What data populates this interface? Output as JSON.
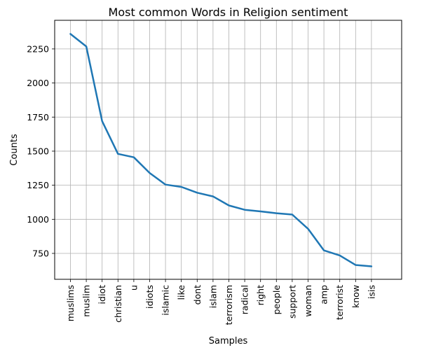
{
  "chart_data": {
    "type": "line",
    "title": "Most common Words in Religion sentiment",
    "xlabel": "Samples",
    "ylabel": "Counts",
    "categories": [
      "muslims",
      "muslim",
      "idiot",
      "christian",
      "u",
      "idiots",
      "islamic",
      "like",
      "dont",
      "islam",
      "terrorism",
      "radical",
      "right",
      "people",
      "support",
      "woman",
      "amp",
      "terrorist",
      "know",
      "isis"
    ],
    "series": [
      {
        "values": [
          2360,
          2268,
          1720,
          1480,
          1455,
          1340,
          1255,
          1238,
          1195,
          1168,
          1102,
          1070,
          1058,
          1045,
          1035,
          930,
          772,
          735,
          665,
          655
        ]
      }
    ],
    "yticks": [
      750,
      1000,
      1250,
      1500,
      1750,
      2000,
      2250
    ],
    "ylim": [
      560,
      2460
    ],
    "grid": true,
    "line_color": "#1f77b4"
  }
}
